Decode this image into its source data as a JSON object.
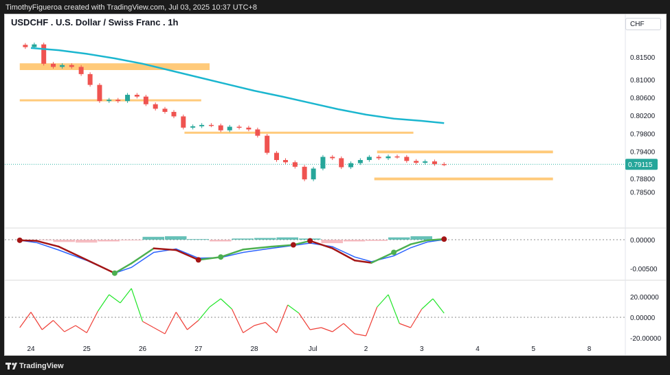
{
  "header": {
    "attribution": "TimothyFigueroa created with TradingView.com, Jul 03, 2025 10:37 UTC+8"
  },
  "chart_title": "USDCHF . U.S. Dollar / Swiss Franc . 1h",
  "currency_label": "CHF",
  "footer": {
    "brand": "TradingView"
  },
  "colors": {
    "up": "#26a69a",
    "down": "#ef5350",
    "ma": "#1bb6cf",
    "zone": "#ffb84d",
    "macd_line": "#2962ff",
    "signal_up": "#4caf50",
    "signal_down": "#a31515",
    "osc_up": "#22e62a",
    "osc_down": "#ef3e36"
  },
  "chart_data": [
    {
      "type": "line",
      "title": "USDCHF . U.S. Dollar / Swiss Franc . 1h",
      "pane": "price",
      "x_ticks": [
        "24",
        "25",
        "26",
        "27",
        "28",
        "Jul",
        "2",
        "3",
        "4",
        "5",
        "8"
      ],
      "y_ticks": [
        "0.81500",
        "0.81000",
        "0.80600",
        "0.80200",
        "0.79800",
        "0.79400",
        "0.78800",
        "0.78500"
      ],
      "last_price": "0.79115",
      "series": [
        {
          "kind": "candles",
          "x": [
            23.9,
            24.06,
            24.23,
            24.4,
            24.56,
            24.73,
            24.9,
            25.06,
            25.23,
            25.4,
            25.56,
            25.73,
            25.9,
            26.06,
            26.23,
            26.4,
            26.56,
            26.73,
            26.9,
            27.06,
            27.23,
            27.4,
            27.56,
            27.73,
            27.9,
            28.06,
            28.23,
            28.4,
            28.56,
            28.73,
            28.9,
            29.06,
            29.23,
            29.4,
            29.56,
            29.73,
            29.9,
            30.06,
            30.23,
            30.4,
            30.56,
            30.73,
            30.9,
            31.06,
            31.23,
            31.4
          ],
          "y": [
            0.8172,
            0.8178,
            0.8135,
            0.8128,
            0.8132,
            0.8128,
            0.8112,
            0.8088,
            0.8052,
            0.8055,
            0.8052,
            0.8066,
            0.8062,
            0.8045,
            0.8035,
            0.8028,
            0.8018,
            0.7993,
            0.7996,
            0.7999,
            0.7998,
            0.7987,
            0.7995,
            0.7993,
            0.7989,
            0.7975,
            0.7937,
            0.7921,
            0.7916,
            0.7906,
            0.7878,
            0.7902,
            0.7928,
            0.7925,
            0.7905,
            0.7914,
            0.7921,
            0.7928,
            0.7925,
            0.7929,
            0.7928,
            0.7919,
            0.7915,
            0.7918,
            0.7912,
            0.79115
          ]
        },
        {
          "name": "",
          "kind": "moving_average",
          "x": [
            24.0,
            24.5,
            25.0,
            25.5,
            26.0,
            26.5,
            27.0,
            27.5,
            28.0,
            28.5,
            29.0,
            29.5,
            30.0,
            30.5,
            31.0,
            31.4
          ],
          "y": [
            0.817,
            0.8165,
            0.8157,
            0.8147,
            0.8135,
            0.812,
            0.8105,
            0.809,
            0.8075,
            0.8062,
            0.8048,
            0.8034,
            0.8022,
            0.8013,
            0.8008,
            0.8003
          ]
        }
      ],
      "zones": [
        {
          "x": [
            23.8,
            27.2
          ],
          "y": [
            0.8121,
            0.8136
          ]
        },
        {
          "x": [
            23.8,
            27.05
          ],
          "y": [
            0.8054,
            0.8056
          ]
        },
        {
          "x": [
            26.75,
            30.85
          ],
          "y": [
            0.7981,
            0.7984
          ]
        },
        {
          "x": [
            30.2,
            33.35
          ],
          "y": [
            0.7936,
            0.7942
          ]
        },
        {
          "x": [
            30.15,
            33.35
          ],
          "y": [
            0.7876,
            0.7882
          ]
        }
      ]
    },
    {
      "type": "line",
      "pane": "macd",
      "y_ticks": [
        "0.00000",
        "-0.00500"
      ],
      "series": [
        {
          "name": "",
          "kind": "macd",
          "x": [
            23.8,
            24.1,
            24.5,
            25.0,
            25.5,
            25.8,
            26.2,
            26.6,
            27.0,
            27.4,
            27.8,
            28.3,
            28.7,
            29.0,
            29.4,
            29.8,
            30.1,
            30.5,
            30.8,
            31.1,
            31.4
          ],
          "y": [
            -0.0001,
            -0.0005,
            -0.0018,
            -0.0036,
            -0.0058,
            -0.0048,
            -0.0022,
            -0.0016,
            -0.0032,
            -0.0031,
            -0.0022,
            -0.0015,
            -0.001,
            -0.0006,
            -0.0012,
            -0.003,
            -0.0038,
            -0.0028,
            -0.0014,
            -0.0004,
            0.0
          ]
        },
        {
          "name": "",
          "kind": "signal",
          "x": [
            23.8,
            24.1,
            24.5,
            25.0,
            25.5,
            25.8,
            26.2,
            26.6,
            27.0,
            27.4,
            27.8,
            28.3,
            28.7,
            29.0,
            29.4,
            29.8,
            30.1,
            30.5,
            30.8,
            31.1,
            31.4
          ],
          "y": [
            -0.0001,
            -0.0002,
            -0.0012,
            -0.0035,
            -0.0058,
            -0.0041,
            -0.0015,
            -0.0018,
            -0.0035,
            -0.003,
            -0.0017,
            -0.0012,
            -0.0009,
            -0.0002,
            -0.0015,
            -0.0036,
            -0.004,
            -0.0022,
            -0.0008,
            -0.0001,
            0.0001
          ]
        },
        {
          "name": "",
          "kind": "histogram",
          "x": [
            24.0,
            24.4,
            24.8,
            25.2,
            25.6,
            26.0,
            26.4,
            26.8,
            27.2,
            27.6,
            28.0,
            28.4,
            28.8,
            29.2,
            29.6,
            30.0,
            30.4,
            30.8,
            31.2
          ],
          "y": [
            -0.0001,
            -0.0004,
            -0.0005,
            -0.0003,
            -0.0001,
            0.0005,
            0.0006,
            0.0001,
            -0.0003,
            0.0002,
            0.0003,
            0.0004,
            0.0002,
            -0.0006,
            -0.0003,
            -0.0002,
            0.0004,
            0.0006,
            0.0004
          ]
        }
      ]
    },
    {
      "type": "line",
      "pane": "oscillator",
      "y_ticks": [
        "20.00000",
        "0.00000",
        "-20.00000"
      ],
      "series": [
        {
          "name": "",
          "x": [
            23.8,
            24.0,
            24.2,
            24.4,
            24.6,
            24.8,
            25.0,
            25.2,
            25.4,
            25.6,
            25.8,
            26.0,
            26.2,
            26.4,
            26.6,
            26.8,
            27.0,
            27.2,
            27.4,
            27.6,
            27.8,
            28.0,
            28.2,
            28.4,
            28.6,
            28.8,
            29.0,
            29.2,
            29.4,
            29.6,
            29.8,
            30.0,
            30.2,
            30.4,
            30.6,
            30.8,
            31.0,
            31.2,
            31.4
          ],
          "y": [
            -10,
            5,
            -12,
            -3,
            -14,
            -8,
            -15,
            6,
            22,
            14,
            28,
            -4,
            -10,
            -16,
            5,
            -12,
            -3,
            10,
            18,
            8,
            -15,
            -8,
            -5,
            -15,
            12,
            4,
            -12,
            -10,
            -14,
            -6,
            -16,
            -18,
            10,
            22,
            -6,
            -10,
            8,
            18,
            4
          ]
        }
      ]
    }
  ]
}
